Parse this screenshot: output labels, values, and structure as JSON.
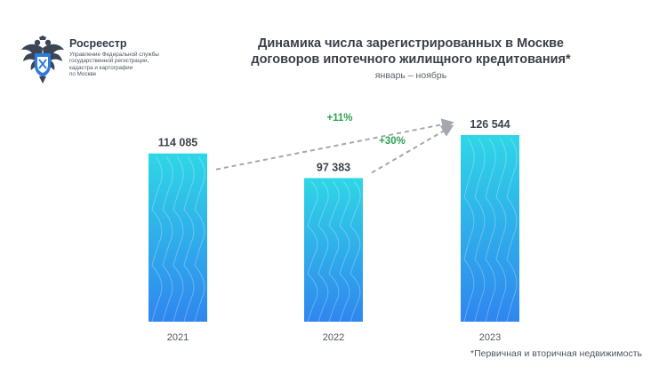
{
  "organization": {
    "name": "Росреестр",
    "subtitle_lines": [
      "Управление Федеральной службы",
      "государственной регистрации,",
      "кадастра и картографии",
      "по Москве"
    ],
    "logo_icon": "double-headed-eagle-emblem"
  },
  "title_lines": [
    "Динамика числа зарегистрированных в Москве",
    "договоров ипотечного жилищного кредитования*"
  ],
  "subtitle": "январь – ноябрь",
  "footnote": "*Первичная и вторичная недвижимость",
  "colors": {
    "bar_top": "#2fd6e6",
    "bar_bottom": "#2f86ee",
    "arrow": "#a3a8ae",
    "growth_text": "#2aa44f"
  },
  "chart_data": {
    "type": "bar",
    "categories": [
      "2021",
      "2022",
      "2023"
    ],
    "values": [
      114085,
      97383,
      126544
    ],
    "value_labels": [
      "114 085",
      "97 383",
      "126 544"
    ],
    "annotations": [
      {
        "from": "2021",
        "to": "2023",
        "label": "+11%"
      },
      {
        "from": "2022",
        "to": "2023",
        "label": "+30%"
      }
    ],
    "grid": false,
    "title": "Динамика числа зарегистрированных в Москве договоров ипотечного жилищного кредитования*"
  }
}
